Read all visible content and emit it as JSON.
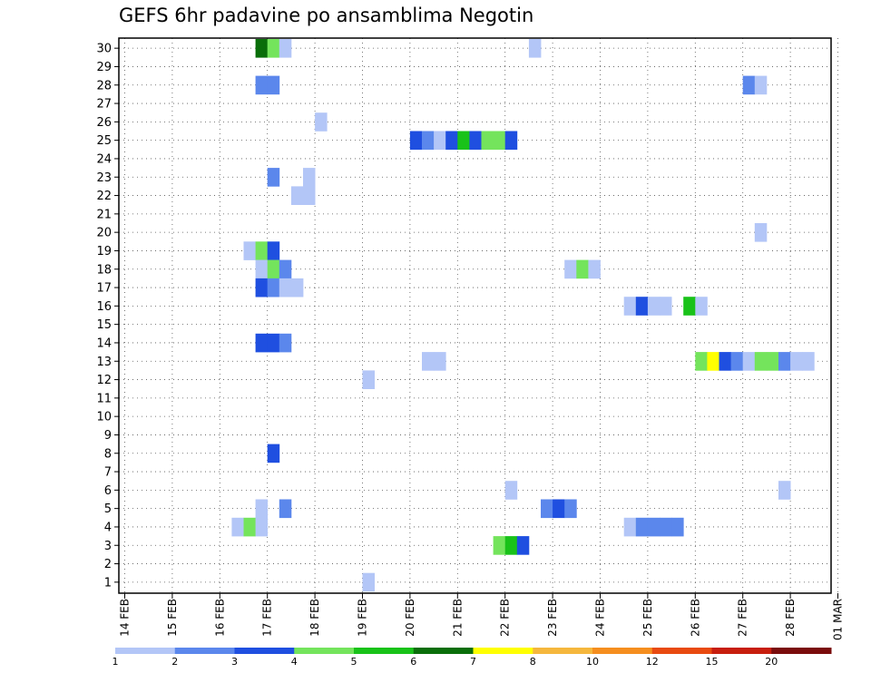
{
  "chart_data": {
    "type": "heatmap",
    "title": "GEFS 6hr padavine po ansamblima Negotin",
    "x_tick_labels": [
      "14 FEB",
      "15 FEB",
      "16 FEB",
      "17 FEB",
      "18 FEB",
      "19 FEB",
      "20 FEB",
      "21 FEB",
      "22 FEB",
      "23 FEB",
      "24 FEB",
      "25 FEB",
      "26 FEB",
      "27 FEB",
      "28 FEB",
      "01 MAR"
    ],
    "y_tick_labels": [
      "1",
      "2",
      "3",
      "4",
      "5",
      "6",
      "7",
      "8",
      "9",
      "10",
      "11",
      "12",
      "13",
      "14",
      "15",
      "16",
      "17",
      "18",
      "19",
      "20",
      "21",
      "22",
      "23",
      "24",
      "25",
      "26",
      "27",
      "28",
      "29",
      "30"
    ],
    "x_range_days": [
      0,
      15
    ],
    "y_range": [
      1,
      30
    ],
    "time_step_hours": 6,
    "grid": true,
    "colorbar": {
      "position": "bottom",
      "labels": [
        "1",
        "2",
        "3",
        "4",
        "5",
        "6",
        "7",
        "8",
        "10",
        "12",
        "15",
        "20"
      ],
      "colors": [
        "#b3c6f7",
        "#5b87ec",
        "#1f4fe0",
        "#74e45c",
        "#19c219",
        "#0a6e0a",
        "#ffff00",
        "#f5b73d",
        "#f58e1f",
        "#e84a10",
        "#c71e0e",
        "#7a0c0c"
      ]
    },
    "cells": [
      {
        "member": 30,
        "t": 11,
        "level": 6
      },
      {
        "member": 30,
        "t": 12,
        "level": 4
      },
      {
        "member": 30,
        "t": 13,
        "level": 1
      },
      {
        "member": 30,
        "t": 34,
        "level": 1
      },
      {
        "member": 28,
        "t": 11,
        "level": 2
      },
      {
        "member": 28,
        "t": 12,
        "level": 2
      },
      {
        "member": 28,
        "t": 52,
        "level": 2
      },
      {
        "member": 28,
        "t": 53,
        "level": 1
      },
      {
        "member": 26,
        "t": 16,
        "level": 1
      },
      {
        "member": 25,
        "t": 24,
        "level": 3
      },
      {
        "member": 25,
        "t": 25,
        "level": 2
      },
      {
        "member": 25,
        "t": 26,
        "level": 1
      },
      {
        "member": 25,
        "t": 27,
        "level": 3
      },
      {
        "member": 25,
        "t": 28,
        "level": 5
      },
      {
        "member": 25,
        "t": 29,
        "level": 3
      },
      {
        "member": 25,
        "t": 30,
        "level": 4
      },
      {
        "member": 25,
        "t": 31,
        "level": 4
      },
      {
        "member": 25,
        "t": 32,
        "level": 3
      },
      {
        "member": 23,
        "t": 12,
        "level": 2
      },
      {
        "member": 23,
        "t": 15,
        "level": 1
      },
      {
        "member": 22,
        "t": 14,
        "level": 1
      },
      {
        "member": 22,
        "t": 15,
        "level": 1
      },
      {
        "member": 20,
        "t": 53,
        "level": 1
      },
      {
        "member": 19,
        "t": 10,
        "level": 1
      },
      {
        "member": 19,
        "t": 11,
        "level": 4
      },
      {
        "member": 19,
        "t": 12,
        "level": 3
      },
      {
        "member": 18,
        "t": 11,
        "level": 1
      },
      {
        "member": 18,
        "t": 12,
        "level": 4
      },
      {
        "member": 18,
        "t": 13,
        "level": 2
      },
      {
        "member": 18,
        "t": 37,
        "level": 1
      },
      {
        "member": 18,
        "t": 38,
        "level": 4
      },
      {
        "member": 18,
        "t": 39,
        "level": 1
      },
      {
        "member": 17,
        "t": 11,
        "level": 3
      },
      {
        "member": 17,
        "t": 12,
        "level": 2
      },
      {
        "member": 17,
        "t": 13,
        "level": 1
      },
      {
        "member": 17,
        "t": 14,
        "level": 1
      },
      {
        "member": 16,
        "t": 42,
        "level": 1
      },
      {
        "member": 16,
        "t": 43,
        "level": 3
      },
      {
        "member": 16,
        "t": 44,
        "level": 1
      },
      {
        "member": 16,
        "t": 45,
        "level": 1
      },
      {
        "member": 16,
        "t": 47,
        "level": 5
      },
      {
        "member": 16,
        "t": 48,
        "level": 1
      },
      {
        "member": 14,
        "t": 11,
        "level": 3
      },
      {
        "member": 14,
        "t": 12,
        "level": 3
      },
      {
        "member": 14,
        "t": 13,
        "level": 2
      },
      {
        "member": 13,
        "t": 25,
        "level": 1
      },
      {
        "member": 13,
        "t": 26,
        "level": 1
      },
      {
        "member": 13,
        "t": 48,
        "level": 4
      },
      {
        "member": 13,
        "t": 49,
        "level": 7
      },
      {
        "member": 13,
        "t": 50,
        "level": 3
      },
      {
        "member": 13,
        "t": 51,
        "level": 2
      },
      {
        "member": 13,
        "t": 52,
        "level": 1
      },
      {
        "member": 13,
        "t": 53,
        "level": 4
      },
      {
        "member": 13,
        "t": 54,
        "level": 4
      },
      {
        "member": 13,
        "t": 55,
        "level": 2
      },
      {
        "member": 13,
        "t": 56,
        "level": 1
      },
      {
        "member": 13,
        "t": 57,
        "level": 1
      },
      {
        "member": 12,
        "t": 20,
        "level": 1
      },
      {
        "member": 8,
        "t": 12,
        "level": 3
      },
      {
        "member": 6,
        "t": 32,
        "level": 1
      },
      {
        "member": 6,
        "t": 55,
        "level": 1
      },
      {
        "member": 5,
        "t": 11,
        "level": 1
      },
      {
        "member": 5,
        "t": 13,
        "level": 2
      },
      {
        "member": 5,
        "t": 35,
        "level": 2
      },
      {
        "member": 5,
        "t": 36,
        "level": 3
      },
      {
        "member": 5,
        "t": 37,
        "level": 2
      },
      {
        "member": 4,
        "t": 9,
        "level": 1
      },
      {
        "member": 4,
        "t": 10,
        "level": 4
      },
      {
        "member": 4,
        "t": 11,
        "level": 1
      },
      {
        "member": 4,
        "t": 42,
        "level": 1
      },
      {
        "member": 4,
        "t": 43,
        "level": 2
      },
      {
        "member": 4,
        "t": 44,
        "level": 2
      },
      {
        "member": 4,
        "t": 45,
        "level": 2
      },
      {
        "member": 4,
        "t": 46,
        "level": 2
      },
      {
        "member": 3,
        "t": 31,
        "level": 4
      },
      {
        "member": 3,
        "t": 32,
        "level": 5
      },
      {
        "member": 3,
        "t": 33,
        "level": 3
      },
      {
        "member": 1,
        "t": 20,
        "level": 1
      }
    ]
  }
}
